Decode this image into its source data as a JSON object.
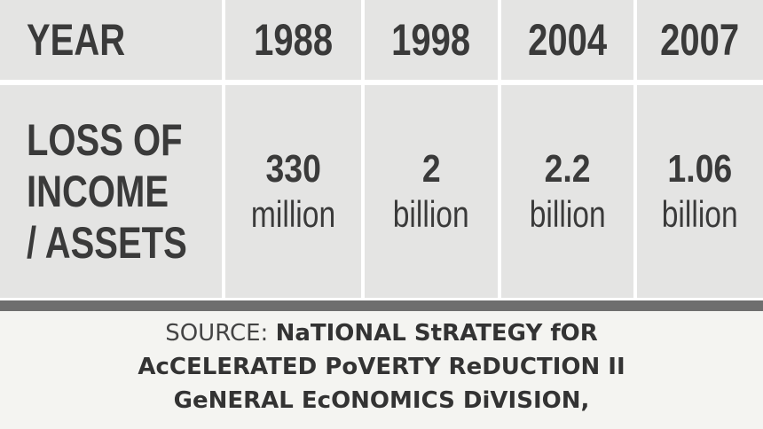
{
  "table": {
    "header": [
      "YEAR",
      "1988",
      "1998",
      "2004",
      "2007"
    ],
    "row_label": [
      "LOSS OF",
      "INCOME",
      "/ ASSETS"
    ],
    "cells": [
      {
        "amount": "330",
        "unit": "million"
      },
      {
        "amount": "2",
        "unit": "billion"
      },
      {
        "amount": "2.2",
        "unit": "billion"
      },
      {
        "amount": "1.06",
        "unit": "billion"
      }
    ]
  },
  "source": {
    "label": "SOURCE:",
    "lines": [
      "NaTIONAL StRATEGY fOR",
      "AcCELERATED PoVERTY ReDUCTION II",
      "GeNERAL EcONOMICS DiVISION,"
    ]
  }
}
